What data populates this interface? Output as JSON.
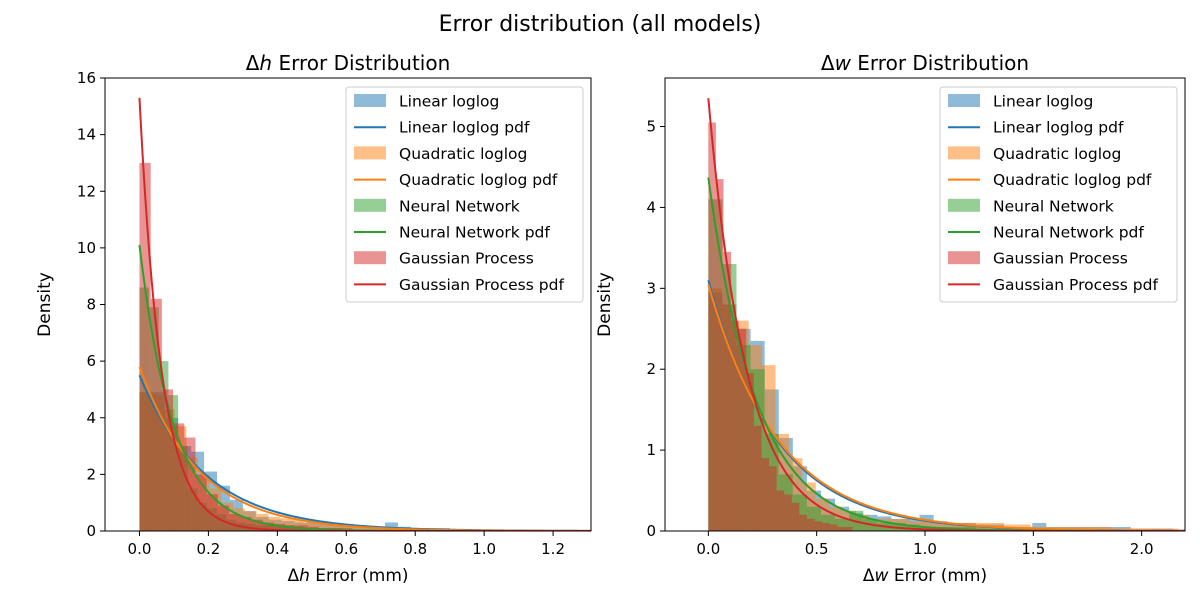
{
  "figure": {
    "suptitle": "Error distribution (all models)"
  },
  "series_styles": [
    {
      "name": "Linear loglog",
      "color": "#1f77b4"
    },
    {
      "name": "Quadratic loglog",
      "color": "#ff7f0e"
    },
    {
      "name": "Neural Network",
      "color": "#2ca02c"
    },
    {
      "name": "Gaussian Process",
      "color": "#d62728"
    }
  ],
  "chart_data": [
    {
      "type": "histogram",
      "title_prefix": "Δ",
      "title_var": "h",
      "title_suffix": " Error Distribution",
      "xlabel_prefix": "Δ",
      "xlabel_var": "h",
      "xlabel_suffix": " Error (mm)",
      "ylabel": "Density",
      "xlim": [
        -0.1,
        1.31
      ],
      "ylim": [
        0,
        16
      ],
      "xticks": [
        0.0,
        0.2,
        0.4,
        0.6,
        0.8,
        1.0,
        1.2
      ],
      "xtick_labels": [
        "0.0",
        "0.2",
        "0.4",
        "0.6",
        "0.8",
        "1.0",
        "1.2"
      ],
      "yticks": [
        0,
        2,
        4,
        6,
        8,
        10,
        12,
        14,
        16
      ],
      "ytick_labels": [
        "0",
        "2",
        "4",
        "6",
        "8",
        "10",
        "12",
        "14",
        "16"
      ],
      "grid": false,
      "legend_position": "top-right",
      "legend": [
        "Linear loglog",
        "Linear loglog pdf",
        "Quadratic loglog",
        "Quadratic loglog pdf",
        "Neural Network",
        "Neural Network pdf",
        "Gaussian Process",
        "Gaussian Process pdf"
      ],
      "series": [
        {
          "name": "Linear loglog",
          "bin_start": 0,
          "bin_width": 0.0375,
          "values": [
            4.9,
            4.9,
            4.0,
            3.0,
            2.8,
            2.1,
            1.6,
            1.1,
            0.7,
            0.5,
            0.4,
            0.35,
            0.3,
            0.3,
            0.25,
            0.2,
            0.2,
            0.15,
            0.15,
            0.3,
            0.15,
            0.1,
            0.1,
            0.1,
            0.05,
            0.05,
            0.05,
            0.05,
            0.05,
            0.05
          ]
        },
        {
          "name": "Quadratic loglog",
          "bin_start": 0,
          "bin_width": 0.034,
          "values": [
            4.9,
            4.8,
            4.3,
            3.7,
            2.6,
            2.0,
            1.5,
            1.0,
            0.8,
            0.7,
            0.6,
            0.5,
            0.45,
            0.4,
            0.3,
            0.3,
            0.25,
            0.2,
            0.15,
            0.12,
            0.12,
            0.1,
            0.1,
            0.1,
            0.08,
            0.05,
            0.05,
            0.05,
            0.05,
            0.05
          ]
        },
        {
          "name": "Neural Network",
          "bin_start": 0,
          "bin_width": 0.028,
          "values": [
            8.6,
            7.9,
            6.0,
            4.8,
            3.0,
            1.5,
            1.0,
            0.8,
            0.6,
            0.4,
            0.3,
            0.25,
            0.2,
            0.2,
            0.15,
            0.2,
            0.15,
            0.1,
            0.1,
            0.1,
            0.1,
            0.05,
            0.05,
            0.05
          ]
        },
        {
          "name": "Gaussian Process",
          "bin_start": 0,
          "bin_width": 0.0325,
          "values": [
            13.0,
            8.2,
            5.0,
            3.8,
            3.3,
            2.0,
            1.3,
            0.9,
            0.6,
            0.5,
            0.4,
            0.3,
            0.25,
            0.2,
            0.2,
            0.15,
            0.1,
            0.1,
            0.1,
            0.05
          ]
        }
      ],
      "pdfs": [
        {
          "name": "Linear loglog pdf",
          "scale": 5.5,
          "rate": 5.3
        },
        {
          "name": "Quadratic loglog pdf",
          "scale": 5.8,
          "rate": 5.8
        },
        {
          "name": "Neural Network pdf",
          "scale": 10.1,
          "rate": 10.0
        },
        {
          "name": "Gaussian Process pdf",
          "scale": 15.3,
          "rate": 15.5
        }
      ]
    },
    {
      "type": "histogram",
      "title_prefix": "Δ",
      "title_var": "w",
      "title_suffix": " Error Distribution",
      "xlabel_prefix": "Δ",
      "xlabel_var": "w",
      "xlabel_suffix": " Error (mm)",
      "ylabel": "Density",
      "xlim": [
        -0.2,
        2.2
      ],
      "ylim": [
        0,
        5.6
      ],
      "xticks": [
        0.0,
        0.5,
        1.0,
        1.5,
        2.0
      ],
      "xtick_labels": [
        "0.0",
        "0.5",
        "1.0",
        "1.5",
        "2.0"
      ],
      "yticks": [
        0,
        1,
        2,
        3,
        4,
        5
      ],
      "ytick_labels": [
        "0",
        "1",
        "2",
        "3",
        "4",
        "5"
      ],
      "grid": false,
      "legend_position": "top-right",
      "legend": [
        "Linear loglog",
        "Linear loglog pdf",
        "Quadratic loglog",
        "Quadratic loglog pdf",
        "Neural Network",
        "Neural Network pdf",
        "Gaussian Process",
        "Gaussian Process pdf"
      ],
      "series": [
        {
          "name": "Linear loglog",
          "bin_start": 0,
          "bin_width": 0.065,
          "values": [
            2.95,
            2.8,
            2.5,
            2.35,
            1.75,
            1.15,
            0.8,
            0.5,
            0.4,
            0.3,
            0.22,
            0.2,
            0.18,
            0.15,
            0.15,
            0.2,
            0.12,
            0.1,
            0.1,
            0.08,
            0.08,
            0.05,
            0.05,
            0.1,
            0.05,
            0.05,
            0.05,
            0.05,
            0.05,
            0.05,
            0.03,
            0.03,
            0.03
          ]
        },
        {
          "name": "Quadratic loglog",
          "bin_start": 0,
          "bin_width": 0.062,
          "values": [
            3.0,
            2.8,
            2.6,
            2.3,
            2.05,
            1.2,
            0.9,
            0.6,
            0.4,
            0.3,
            0.25,
            0.2,
            0.15,
            0.15,
            0.15,
            0.12,
            0.12,
            0.1,
            0.1,
            0.1,
            0.1,
            0.1,
            0.08,
            0.08,
            0.05,
            0.05,
            0.05,
            0.05,
            0.05,
            0.05,
            0.03,
            0.03,
            0.03,
            0.03,
            0.03
          ]
        },
        {
          "name": "Neural Network",
          "bin_start": 0,
          "bin_width": 0.065,
          "values": [
            4.1,
            3.3,
            2.3,
            2.0,
            1.2,
            0.7,
            0.45,
            0.3,
            0.2,
            0.15,
            0.25,
            0.15,
            0.1,
            0.1,
            0.08,
            0.05,
            0.05,
            0.05,
            0.05,
            0.03,
            0.03,
            0.03,
            0.03
          ]
        },
        {
          "name": "Gaussian Process",
          "bin_start": 0,
          "bin_width": 0.035,
          "values": [
            5.05,
            4.35,
            3.45,
            2.6,
            2.5,
            1.95,
            1.3,
            0.9,
            0.8,
            0.5,
            0.45,
            0.35,
            0.2,
            0.15,
            0.12,
            0.1,
            0.08,
            0.05,
            0.05
          ]
        }
      ],
      "pdfs": [
        {
          "name": "Linear loglog pdf",
          "scale": 3.1,
          "rate": 3.2
        },
        {
          "name": "Quadratic loglog pdf",
          "scale": 3.05,
          "rate": 3.1
        },
        {
          "name": "Neural Network pdf",
          "scale": 4.37,
          "rate": 4.5
        },
        {
          "name": "Gaussian Process pdf",
          "scale": 5.35,
          "rate": 5.6
        }
      ]
    }
  ]
}
